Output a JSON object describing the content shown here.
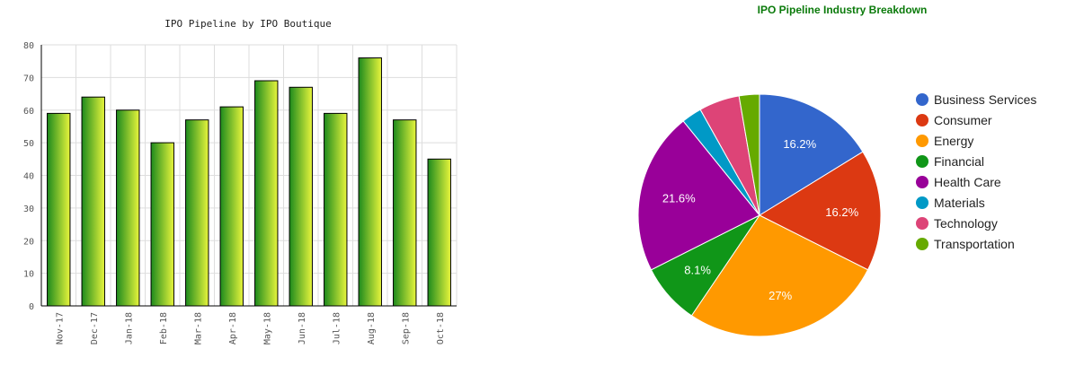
{
  "chart_data": [
    {
      "type": "bar",
      "title": "IPO Pipeline by IPO Boutique",
      "xlabel": "",
      "ylabel": "",
      "categories": [
        "Nov-17",
        "Dec-17",
        "Jan-18",
        "Feb-18",
        "Mar-18",
        "Apr-18",
        "May-18",
        "Jun-18",
        "Jul-18",
        "Aug-18",
        "Sep-18",
        "Oct-18"
      ],
      "values": [
        59,
        64,
        60,
        50,
        57,
        61,
        69,
        67,
        59,
        76,
        57,
        45
      ],
      "ylim": [
        0,
        80
      ],
      "yticks": [
        "0",
        "10",
        "20",
        "30",
        "40",
        "50",
        "60",
        "70",
        "80"
      ],
      "grid": true,
      "colors": {
        "bar_dark": "#1d8a1d",
        "bar_light": "#e8f53c",
        "outline": "#000000",
        "grid": "#dddddd"
      }
    },
    {
      "type": "pie",
      "title": "IPO Pipeline Industry Breakdown",
      "legend_position": "right",
      "slices": [
        {
          "label": "Business Services",
          "value": 16.2,
          "display": "16.2%",
          "color": "#3366cc"
        },
        {
          "label": "Consumer",
          "value": 16.2,
          "display": "16.2%",
          "color": "#dc3912"
        },
        {
          "label": "Energy",
          "value": 27.0,
          "display": "27%",
          "color": "#ff9900"
        },
        {
          "label": "Financial",
          "value": 8.1,
          "display": "8.1%",
          "color": "#109618"
        },
        {
          "label": "Health Care",
          "value": 21.6,
          "display": "21.6%",
          "color": "#990099"
        },
        {
          "label": "Materials",
          "value": 2.7,
          "display": "",
          "color": "#0099c6"
        },
        {
          "label": "Technology",
          "value": 5.4,
          "display": "",
          "color": "#dd4477"
        },
        {
          "label": "Transportation",
          "value": 2.7,
          "display": "",
          "color": "#66aa00"
        }
      ],
      "colors": {
        "title": "#0a7a0a"
      }
    }
  ]
}
